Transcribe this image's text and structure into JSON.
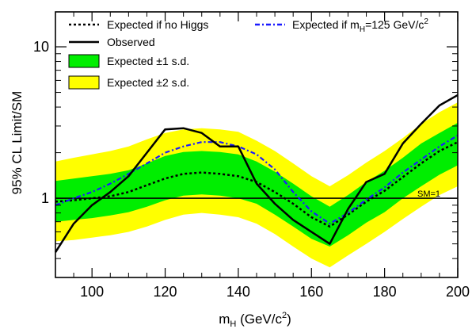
{
  "chart_data": {
    "type": "line",
    "xlabel": "m_H (GeV/c^2)",
    "ylabel": "95% CL Limit/SM",
    "xlim": [
      90,
      200
    ],
    "ylim": [
      0.3,
      17
    ],
    "yscale": "log",
    "x_ticks": [
      100,
      120,
      140,
      160,
      180,
      200
    ],
    "y_ticks": [
      1,
      10
    ],
    "x_tick_labels": [
      "100",
      "120",
      "140",
      "160",
      "180",
      "200"
    ],
    "y_tick_labels": [
      "1",
      "10"
    ],
    "legend_position": "top",
    "colors": {
      "band_2sd": "#ffff00",
      "band_1sd": "#00ee00",
      "expected_no_higgs": "#000000",
      "expected_125": "#1a1aff",
      "observed": "#000000",
      "sm_line": "#000000"
    },
    "legend": {
      "expected_no_higgs": "Expected if no Higgs",
      "expected_125_prefix": "Expected if m",
      "expected_125_sub": "H",
      "expected_125_suffix": "=125 GeV/c",
      "expected_125_sup": "2",
      "observed": "Observed",
      "band_1sd": "Expected ±1 s.d.",
      "band_2sd": "Expected ±2 s.d."
    },
    "annotation": "SM=1",
    "x": [
      90,
      95,
      100,
      105,
      110,
      115,
      120,
      125,
      130,
      135,
      140,
      145,
      150,
      155,
      160,
      165,
      170,
      175,
      180,
      185,
      190,
      195,
      200
    ],
    "series": [
      {
        "name": "Expected if no Higgs",
        "key": "expected_no_higgs",
        "values": [
          0.95,
          0.97,
          1.0,
          1.03,
          1.1,
          1.22,
          1.35,
          1.45,
          1.48,
          1.45,
          1.4,
          1.28,
          1.1,
          0.92,
          0.75,
          0.65,
          0.78,
          0.95,
          1.12,
          1.38,
          1.7,
          2.05,
          2.35
        ]
      },
      {
        "name": "Expected if m_H=125 GeV/c^2",
        "key": "expected_125",
        "values": [
          0.9,
          1.0,
          1.1,
          1.25,
          1.45,
          1.7,
          2.0,
          2.2,
          2.35,
          2.35,
          2.2,
          1.95,
          1.55,
          1.1,
          0.82,
          0.68,
          0.8,
          0.98,
          1.18,
          1.48,
          1.8,
          2.2,
          2.6
        ]
      },
      {
        "name": "Observed",
        "key": "observed",
        "values": [
          0.44,
          0.68,
          0.9,
          1.1,
          1.4,
          2.0,
          2.85,
          2.9,
          2.7,
          2.2,
          2.2,
          1.25,
          0.92,
          0.72,
          0.6,
          0.5,
          0.85,
          1.28,
          1.45,
          2.3,
          3.1,
          4.1,
          4.8
        ]
      }
    ],
    "bands": [
      {
        "name": "Expected ±2 s.d.",
        "key": "band_2sd",
        "lower": [
          0.52,
          0.53,
          0.55,
          0.57,
          0.6,
          0.65,
          0.72,
          0.78,
          0.8,
          0.78,
          0.75,
          0.68,
          0.58,
          0.48,
          0.4,
          0.35,
          0.42,
          0.5,
          0.6,
          0.73,
          0.88,
          1.05,
          1.2
        ],
        "upper": [
          1.75,
          1.85,
          1.95,
          2.05,
          2.2,
          2.45,
          2.7,
          2.85,
          2.9,
          2.85,
          2.75,
          2.4,
          2.05,
          1.7,
          1.4,
          1.2,
          1.42,
          1.72,
          2.05,
          2.5,
          3.1,
          3.7,
          4.3
        ]
      },
      {
        "name": "Expected ±1 s.d.",
        "key": "band_1sd",
        "lower": [
          0.7,
          0.72,
          0.74,
          0.77,
          0.81,
          0.88,
          0.97,
          1.04,
          1.06,
          1.04,
          1.0,
          0.92,
          0.78,
          0.65,
          0.54,
          0.48,
          0.57,
          0.69,
          0.81,
          1.0,
          1.2,
          1.43,
          1.65
        ],
        "upper": [
          1.3,
          1.35,
          1.4,
          1.45,
          1.53,
          1.7,
          1.9,
          2.02,
          2.05,
          2.02,
          1.95,
          1.75,
          1.5,
          1.25,
          1.03,
          0.88,
          1.05,
          1.28,
          1.52,
          1.85,
          2.3,
          2.7,
          3.15
        ]
      }
    ]
  }
}
